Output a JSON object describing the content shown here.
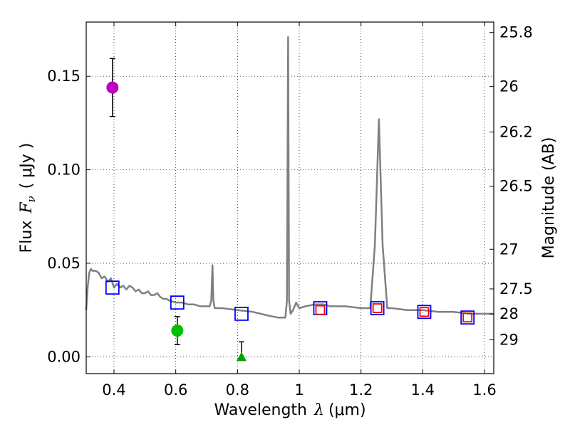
{
  "chart_data": {
    "type": "line",
    "x_axis": {
      "label_prefix": "Wavelength",
      "symbol": "λ",
      "unit": "(μm)",
      "range": [
        0.31,
        1.63
      ],
      "ticks": [
        0.4,
        0.6,
        0.8,
        1.0,
        1.2,
        1.4,
        1.6
      ],
      "tick_labels": [
        "0.4",
        "0.6",
        "0.8",
        "1",
        "1.2",
        "1.4",
        "1.6"
      ]
    },
    "y_axis": {
      "label_prefix": "Flux",
      "symbol": "F",
      "symbol_sub": "ν",
      "unit": "( μJy )",
      "range": [
        -0.009,
        0.179
      ],
      "ticks": [
        0.0,
        0.05,
        0.1,
        0.15
      ],
      "tick_labels": [
        "0.00",
        "0.05",
        "0.10",
        "0.15"
      ]
    },
    "y2_axis": {
      "label": "Magnitude (AB)",
      "ticks": [
        {
          "label": "25.8",
          "flux": 0.1734
        },
        {
          "label": "26",
          "flux": 0.1445
        },
        {
          "label": "26.2",
          "flux": 0.1202
        },
        {
          "label": "26.5",
          "flux": 0.0912
        },
        {
          "label": "27",
          "flux": 0.0575
        },
        {
          "label": "27.5",
          "flux": 0.0363
        },
        {
          "label": "28",
          "flux": 0.0229
        },
        {
          "label": "29",
          "flux": 0.0091
        }
      ]
    },
    "grid": true,
    "series": [
      {
        "name": "model spectrum",
        "type": "line",
        "color": "#808080",
        "points": [
          [
            0.31,
            0.025
          ],
          [
            0.315,
            0.038
          ],
          [
            0.32,
            0.045
          ],
          [
            0.325,
            0.047
          ],
          [
            0.33,
            0.046
          ],
          [
            0.34,
            0.046
          ],
          [
            0.35,
            0.045
          ],
          [
            0.36,
            0.042
          ],
          [
            0.37,
            0.043
          ],
          [
            0.38,
            0.04
          ],
          [
            0.39,
            0.042
          ],
          [
            0.4,
            0.037
          ],
          [
            0.41,
            0.039
          ],
          [
            0.42,
            0.037
          ],
          [
            0.43,
            0.038
          ],
          [
            0.44,
            0.036
          ],
          [
            0.45,
            0.038
          ],
          [
            0.46,
            0.037
          ],
          [
            0.47,
            0.035
          ],
          [
            0.48,
            0.036
          ],
          [
            0.49,
            0.034
          ],
          [
            0.5,
            0.034
          ],
          [
            0.51,
            0.035
          ],
          [
            0.52,
            0.033
          ],
          [
            0.53,
            0.033
          ],
          [
            0.54,
            0.034
          ],
          [
            0.55,
            0.032
          ],
          [
            0.56,
            0.031
          ],
          [
            0.57,
            0.031
          ],
          [
            0.58,
            0.03
          ],
          [
            0.6,
            0.029
          ],
          [
            0.62,
            0.029
          ],
          [
            0.64,
            0.028
          ],
          [
            0.66,
            0.028
          ],
          [
            0.68,
            0.027
          ],
          [
            0.7,
            0.027
          ],
          [
            0.71,
            0.027
          ],
          [
            0.715,
            0.03
          ],
          [
            0.719,
            0.049
          ],
          [
            0.722,
            0.03
          ],
          [
            0.726,
            0.026
          ],
          [
            0.75,
            0.026
          ],
          [
            0.8,
            0.025
          ],
          [
            0.85,
            0.024
          ],
          [
            0.9,
            0.022
          ],
          [
            0.93,
            0.021
          ],
          [
            0.955,
            0.021
          ],
          [
            0.96,
            0.03
          ],
          [
            0.964,
            0.171
          ],
          [
            0.967,
            0.03
          ],
          [
            0.972,
            0.023
          ],
          [
            0.98,
            0.025
          ],
          [
            0.99,
            0.029
          ],
          [
            1.0,
            0.026
          ],
          [
            1.02,
            0.027
          ],
          [
            1.05,
            0.028
          ],
          [
            1.08,
            0.028
          ],
          [
            1.1,
            0.027
          ],
          [
            1.15,
            0.027
          ],
          [
            1.2,
            0.026
          ],
          [
            1.23,
            0.026
          ],
          [
            1.245,
            0.06
          ],
          [
            1.258,
            0.127
          ],
          [
            1.27,
            0.06
          ],
          [
            1.285,
            0.026
          ],
          [
            1.3,
            0.026
          ],
          [
            1.35,
            0.025
          ],
          [
            1.4,
            0.025
          ],
          [
            1.45,
            0.024
          ],
          [
            1.5,
            0.024
          ],
          [
            1.55,
            0.023
          ],
          [
            1.6,
            0.023
          ],
          [
            1.63,
            0.023
          ]
        ]
      },
      {
        "name": "observed flux (magenta)",
        "type": "errorbar",
        "marker": "circle",
        "color": "#bf00bf",
        "points": [
          {
            "x": 0.395,
            "y": 0.144,
            "err_low": 0.0155,
            "err_high": 0.0155
          }
        ]
      },
      {
        "name": "observed flux (green)",
        "type": "errorbar",
        "marker": "circle",
        "color": "#00bf00",
        "points": [
          {
            "x": 0.605,
            "y": 0.014,
            "err_low": 0.0075,
            "err_high": 0.0075
          }
        ]
      },
      {
        "name": "upper limit (green triangle)",
        "type": "errorbar",
        "marker": "triangle",
        "color": "#00a000",
        "points": [
          {
            "x": 0.813,
            "y": 0.0,
            "err_low": 0.0,
            "err_high": 0.008
          }
        ]
      },
      {
        "name": "model band flux",
        "type": "scatter",
        "marker": "open-square",
        "color": "#0000ff",
        "points": [
          [
            0.395,
            0.037
          ],
          [
            0.605,
            0.029
          ],
          [
            0.813,
            0.023
          ],
          [
            1.068,
            0.026
          ],
          [
            1.253,
            0.026
          ],
          [
            1.405,
            0.024
          ],
          [
            1.545,
            0.021
          ]
        ]
      },
      {
        "name": "observed NIR band flux",
        "type": "scatter",
        "marker": "open-square",
        "color": "#ff0000",
        "points": [
          [
            1.068,
            0.025
          ],
          [
            1.253,
            0.026
          ],
          [
            1.405,
            0.024
          ],
          [
            1.545,
            0.021
          ]
        ]
      }
    ]
  }
}
